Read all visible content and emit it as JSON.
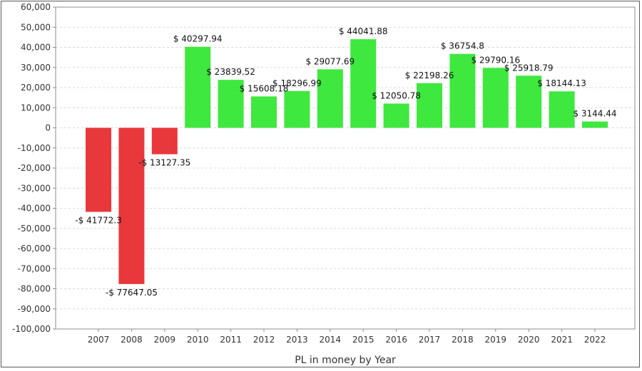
{
  "chart_data": {
    "type": "bar",
    "title": "",
    "xlabel": "PL in money by Year",
    "ylabel": "",
    "ylim": [
      -100000,
      60000
    ],
    "yticks": [
      60000,
      50000,
      40000,
      30000,
      20000,
      10000,
      0,
      -10000,
      -20000,
      -30000,
      -40000,
      -50000,
      -60000,
      -70000,
      -80000,
      -90000,
      -100000
    ],
    "ytick_labels": [
      "60,000",
      "50,000",
      "40,000",
      "30,000",
      "20,000",
      "10,000",
      "0",
      "-10,000",
      "-20,000",
      "-30,000",
      "-40,000",
      "-50,000",
      "-60,000",
      "-70,000",
      "-80,000",
      "-90,000",
      "-100,000"
    ],
    "grid": true,
    "categories": [
      "2007",
      "2008",
      "2009",
      "2010",
      "2011",
      "2012",
      "2013",
      "2014",
      "2015",
      "2016",
      "2017",
      "2018",
      "2019",
      "2020",
      "2021",
      "2022"
    ],
    "values": [
      -41772.3,
      -77647.05,
      -13127.35,
      40297.94,
      23839.52,
      15608.18,
      18296.99,
      29077.69,
      44041.88,
      12050.78,
      22198.26,
      36754.8,
      29790.16,
      25918.79,
      18144.13,
      3144.44
    ],
    "data_labels": [
      "-$ 41772.3",
      "-$ 77647.05",
      "-$ 13127.35",
      "$ 40297.94",
      "$ 23839.52",
      "$ 15608.18",
      "$ 18296.99",
      "$ 29077.69",
      "$ 44041.88",
      "$ 12050.78",
      "$ 22198.26",
      "$ 36754.8",
      "$ 29790.16",
      "$ 25918.79",
      "$ 18144.13",
      "$ 3144.44"
    ],
    "colors": {
      "positive": "#3ee83e",
      "negative": "#e8383c",
      "grid": "#d9d9d9",
      "axis": "#8c8c8c"
    }
  }
}
